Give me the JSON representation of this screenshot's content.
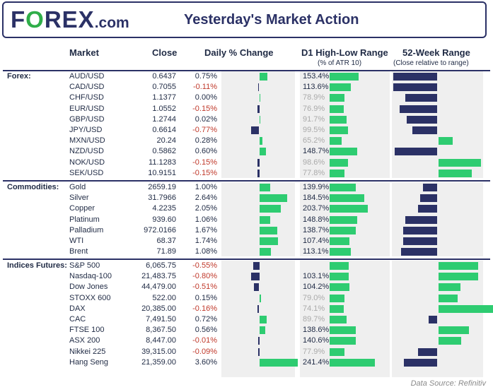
{
  "header": {
    "logo_left": "F",
    "logo_o": "O",
    "logo_right": "REX",
    "logo_dot": ".com",
    "title": "Yesterday's Market Action"
  },
  "columns": {
    "market": "Market",
    "close": "Close",
    "daily": "Daily % Change",
    "d1": "D1 High-Low Range",
    "d1_sub": "(% of ATR 10)",
    "w52": "52-Week Range",
    "w52_sub": "(Close relative to range)"
  },
  "colors": {
    "navy": "#2b3166",
    "green": "#2ecc71",
    "red": "#c0392b",
    "panel": "#efefef",
    "faded": "#aaaaaa"
  },
  "source": "Data Source: Refinitiv",
  "chart_data": {
    "type": "table",
    "groups": [
      {
        "label": "Forex:",
        "rows": [
          {
            "market": "AUD/USD",
            "close": "0.6437",
            "change": "0.75%",
            "change_val": 0.75,
            "range": "153.4%",
            "range_val": 153.4,
            "w52": 0.0
          },
          {
            "market": "CAD/USD",
            "close": "0.7055",
            "change": "-0.11%",
            "change_val": -0.11,
            "range": "113.6%",
            "range_val": 113.6,
            "w52": 0.0
          },
          {
            "market": "CHF/USD",
            "close": "1.1377",
            "change": "0.00%",
            "change_val": 0.0,
            "range": "78.9%",
            "range_val": 78.9,
            "w52": 0.14
          },
          {
            "market": "EUR/USD",
            "close": "1.0552",
            "change": "-0.15%",
            "change_val": -0.15,
            "range": "76.9%",
            "range_val": 76.9,
            "w52": 0.07
          },
          {
            "market": "GBP/USD",
            "close": "1.2744",
            "change": "0.02%",
            "change_val": 0.02,
            "range": "91.7%",
            "range_val": 91.7,
            "w52": 0.15
          },
          {
            "market": "JPY/USD",
            "close": "0.6614",
            "change": "-0.77%",
            "change_val": -0.77,
            "range": "99.5%",
            "range_val": 99.5,
            "w52": 0.22
          },
          {
            "market": "MXN/USD",
            "close": "20.24",
            "change": "0.28%",
            "change_val": 0.28,
            "range": "65.2%",
            "range_val": 65.2,
            "w52": 0.66
          },
          {
            "market": "NZD/USD",
            "close": "0.5862",
            "change": "0.60%",
            "change_val": 0.6,
            "range": "148.7%",
            "range_val": 148.7,
            "w52": 0.02
          },
          {
            "market": "NOK/USD",
            "close": "11.1283",
            "change": "-0.15%",
            "change_val": -0.15,
            "range": "98.6%",
            "range_val": 98.6,
            "w52": 0.98
          },
          {
            "market": "SEK/USD",
            "close": "10.9151",
            "change": "-0.15%",
            "change_val": -0.15,
            "range": "77.8%",
            "range_val": 77.8,
            "w52": 0.88
          }
        ]
      },
      {
        "label": "Commodities:",
        "rows": [
          {
            "market": "Gold",
            "close": "2659.19",
            "change": "1.00%",
            "change_val": 1.0,
            "range": "139.9%",
            "range_val": 139.9,
            "w52": 0.34
          },
          {
            "market": "Silver",
            "close": "31.7966",
            "change": "2.64%",
            "change_val": 2.64,
            "range": "184.5%",
            "range_val": 184.5,
            "w52": 0.31
          },
          {
            "market": "Copper",
            "close": "4.2235",
            "change": "2.05%",
            "change_val": 2.05,
            "range": "203.7%",
            "range_val": 203.7,
            "w52": 0.28
          },
          {
            "market": "Platinum",
            "close": "939.60",
            "change": "1.06%",
            "change_val": 1.06,
            "range": "148.8%",
            "range_val": 148.8,
            "w52": 0.14
          },
          {
            "market": "Palladium",
            "close": "972.0166",
            "change": "1.67%",
            "change_val": 1.67,
            "range": "138.7%",
            "range_val": 138.7,
            "w52": 0.11
          },
          {
            "market": "WTI",
            "close": "68.37",
            "change": "1.74%",
            "change_val": 1.74,
            "range": "107.4%",
            "range_val": 107.4,
            "w52": 0.11
          },
          {
            "market": "Brent",
            "close": "71.89",
            "change": "1.08%",
            "change_val": 1.08,
            "range": "113.1%",
            "range_val": 113.1,
            "w52": 0.09
          }
        ]
      },
      {
        "label": "Indices Futures:",
        "rows": [
          {
            "market": "S&P 500",
            "close": "6,065.75",
            "change": "-0.55%",
            "change_val": -0.55,
            "range": "",
            "range_val": 100.0,
            "w52": 0.95
          },
          {
            "market": "Nasdaq-100",
            "close": "21,483.75",
            "change": "-0.80%",
            "change_val": -0.8,
            "range": "103.1%",
            "range_val": 103.1,
            "w52": 0.95
          },
          {
            "market": "Dow Jones",
            "close": "44,479.00",
            "change": "-0.51%",
            "change_val": -0.51,
            "range": "104.2%",
            "range_val": 104.2,
            "w52": 0.75
          },
          {
            "market": "STOXX 600",
            "close": "522.00",
            "change": "0.15%",
            "change_val": 0.15,
            "range": "79.0%",
            "range_val": 79.0,
            "w52": 0.72
          },
          {
            "market": "DAX",
            "close": "20,385.00",
            "change": "-0.16%",
            "change_val": -0.16,
            "range": "74.1%",
            "range_val": 74.1,
            "w52": 1.16
          },
          {
            "market": "CAC",
            "close": "7,491.50",
            "change": "0.72%",
            "change_val": 0.72,
            "range": "89.7%",
            "range_val": 89.7,
            "w52": 0.4
          },
          {
            "market": "FTSE 100",
            "close": "8,367.50",
            "change": "0.56%",
            "change_val": 0.56,
            "range": "138.6%",
            "range_val": 138.6,
            "w52": 0.85
          },
          {
            "market": "ASX 200",
            "close": "8,447.00",
            "change": "-0.01%",
            "change_val": -0.01,
            "range": "140.6%",
            "range_val": 140.6,
            "w52": 0.76
          },
          {
            "market": "Nikkei 225",
            "close": "39,315.00",
            "change": "-0.09%",
            "change_val": -0.09,
            "range": "77.9%",
            "range_val": 77.9,
            "w52": 0.28
          },
          {
            "market": "Hang Seng",
            "close": "21,359.00",
            "change": "3.60%",
            "change_val": 3.6,
            "range": "241.4%",
            "range_val": 241.4,
            "w52": 0.12
          }
        ]
      }
    ]
  }
}
